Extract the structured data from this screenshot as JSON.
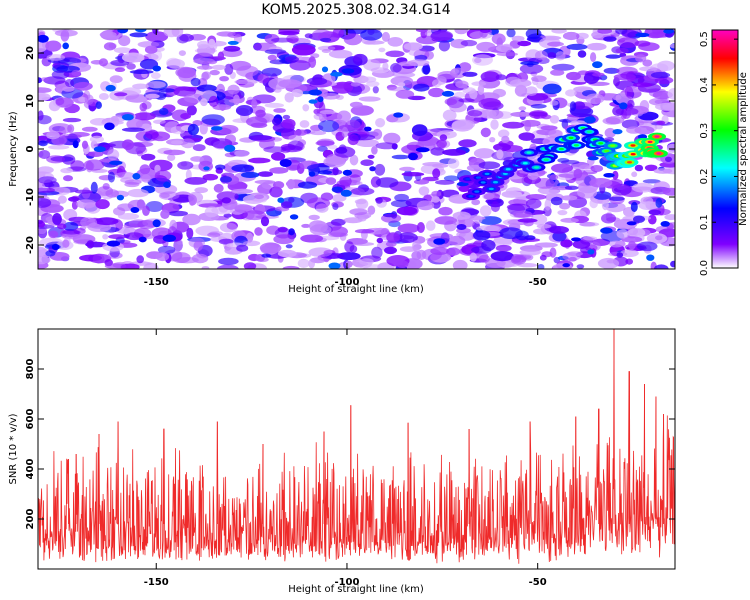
{
  "figure": {
    "title": "KOM5.2025.308.02.34.G14"
  },
  "chart_data": [
    {
      "type": "heatmap",
      "title": "KOM5.2025.308.02.34.G14",
      "xlabel": "Height of straight line (km)",
      "ylabel": "Frequency (Hz)",
      "xlim": [
        -181,
        -14
      ],
      "ylim": [
        -25,
        25
      ],
      "xticks": [
        -150,
        -100,
        -50
      ],
      "xtick_labels": [
        "-150",
        "-100",
        "-50"
      ],
      "yticks": [
        20,
        10,
        0,
        -10,
        -20
      ],
      "ytick_labels": [
        "20",
        "10",
        "0",
        "-10",
        "-20"
      ],
      "colorbar": {
        "label": "Normalized spectral amplitude",
        "range": [
          0.0,
          0.52
        ],
        "ticks": [
          0.0,
          0.1,
          0.2,
          0.3,
          0.4,
          0.5
        ],
        "tick_labels": [
          "0.0",
          "0.1",
          "0.2",
          "0.3",
          "0.4",
          "0.5"
        ],
        "colors": [
          "#ffffff",
          "#7f00ff",
          "#0000ff",
          "#00ffff",
          "#00ff00",
          "#ffff00",
          "#ff0000",
          "#ff00c0"
        ]
      },
      "background_level": 0.08,
      "signal_ridge": [
        {
          "x": -68,
          "y": -8,
          "amp": 0.16
        },
        {
          "x": -62,
          "y": -7,
          "amp": 0.2
        },
        {
          "x": -55,
          "y": -4,
          "amp": 0.22
        },
        {
          "x": -48,
          "y": -1,
          "amp": 0.26
        },
        {
          "x": -42,
          "y": 2,
          "amp": 0.3
        },
        {
          "x": -36,
          "y": 3,
          "amp": 0.26
        },
        {
          "x": -32,
          "y": -1,
          "amp": 0.32
        },
        {
          "x": -28,
          "y": -2,
          "amp": 0.38
        },
        {
          "x": -24,
          "y": -1,
          "amp": 0.45
        },
        {
          "x": -20,
          "y": 0,
          "amp": 0.5
        },
        {
          "x": -17,
          "y": 1,
          "amp": 0.52
        }
      ]
    },
    {
      "type": "line",
      "xlabel": "Height of straight line (km)",
      "ylabel": "SNR (10 * v/v)",
      "xlim": [
        -181,
        -14
      ],
      "ylim": [
        0,
        960
      ],
      "xticks": [
        -150,
        -100,
        -50
      ],
      "xtick_labels": [
        "-150",
        "-100",
        "-50"
      ],
      "yticks": [
        200,
        400,
        600,
        800
      ],
      "ytick_labels": [
        "200",
        "400",
        "600",
        "800"
      ],
      "series": [
        {
          "name": "SNR",
          "color": "#ef2a2a",
          "baseline_range": [
            20,
            460
          ],
          "peaks": [
            {
              "x": -173,
              "y": 440
            },
            {
              "x": -171,
              "y": 460
            },
            {
              "x": -165,
              "y": 540
            },
            {
              "x": -160,
              "y": 590
            },
            {
              "x": -148,
              "y": 560
            },
            {
              "x": -134,
              "y": 590
            },
            {
              "x": -122,
              "y": 500
            },
            {
              "x": -106,
              "y": 550
            },
            {
              "x": -99,
              "y": 655
            },
            {
              "x": -84,
              "y": 585
            },
            {
              "x": -68,
              "y": 560
            },
            {
              "x": -52,
              "y": 590
            },
            {
              "x": -40,
              "y": 610
            },
            {
              "x": -34,
              "y": 640
            },
            {
              "x": -30,
              "y": 960
            },
            {
              "x": -26,
              "y": 790
            },
            {
              "x": -22,
              "y": 740
            },
            {
              "x": -19,
              "y": 690
            },
            {
              "x": -17,
              "y": 620
            }
          ]
        }
      ]
    }
  ]
}
